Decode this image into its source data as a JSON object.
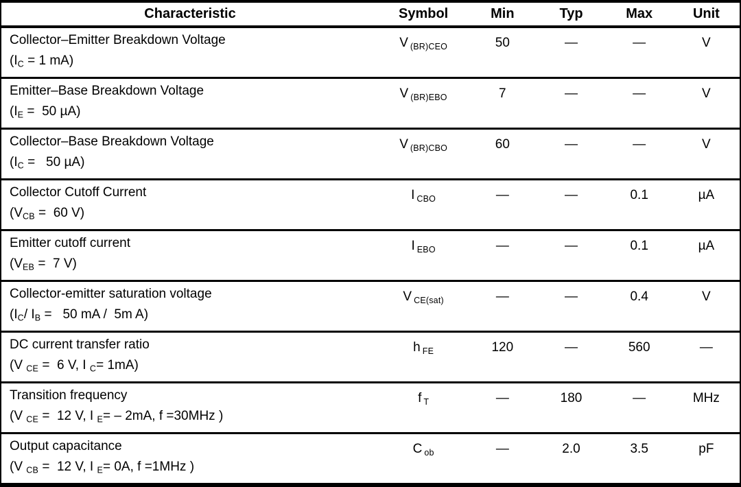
{
  "table": {
    "headers": [
      "Characteristic",
      "Symbol",
      "Min",
      "Typ",
      "Max",
      "Unit"
    ],
    "empty_marker": "—",
    "rows": [
      {
        "name": "Collector–Emitter Breakdown Voltage",
        "condition": [
          {
            "t": "(I"
          },
          {
            "s": "C"
          },
          {
            "t": " = 1 mA)"
          }
        ],
        "symbol": {
          "base": "V",
          "sub": "(BR)CEO"
        },
        "min": "50",
        "typ": "—",
        "max": "—",
        "unit": "V"
      },
      {
        "name": "Emitter–Base Breakdown Voltage",
        "condition": [
          {
            "t": "(I"
          },
          {
            "s": "E"
          },
          {
            "t": " =  50 µA)"
          }
        ],
        "symbol": {
          "base": "V",
          "sub": "(BR)EBO"
        },
        "min": "7",
        "typ": "—",
        "max": "—",
        "unit": "V"
      },
      {
        "name": "Collector–Base Breakdown Voltage",
        "condition": [
          {
            "t": "(I"
          },
          {
            "s": "C"
          },
          {
            "t": " =   50 µA)"
          }
        ],
        "symbol": {
          "base": "V",
          "sub": "(BR)CBO"
        },
        "min": "60",
        "typ": "—",
        "max": "—",
        "unit": "V"
      },
      {
        "name": "Collector Cutoff Current",
        "condition": [
          {
            "t": "(V"
          },
          {
            "s": "CB"
          },
          {
            "t": " =  60 V)"
          }
        ],
        "symbol": {
          "base": "I",
          "sub": "CBO"
        },
        "min": "—",
        "typ": "—",
        "max": "0.1",
        "unit": "µA"
      },
      {
        "name": "Emitter cutoff current",
        "condition": [
          {
            "t": "(V"
          },
          {
            "s": "EB"
          },
          {
            "t": " =  7 V)"
          }
        ],
        "symbol": {
          "base": "I",
          "sub": "EBO"
        },
        "min": "—",
        "typ": "—",
        "max": "0.1",
        "unit": "µA"
      },
      {
        "name": "Collector-emitter saturation voltage",
        "condition": [
          {
            "t": "(I"
          },
          {
            "s": "C"
          },
          {
            "t": "/ I"
          },
          {
            "s": "B"
          },
          {
            "t": " =   50 mA /  5m A)"
          }
        ],
        "symbol": {
          "base": "V",
          "sub": "CE(sat)"
        },
        "min": "—",
        "typ": "—",
        "max": "0.4",
        "unit": "V"
      },
      {
        "name": "DC current transfer ratio",
        "condition": [
          {
            "t": "(V "
          },
          {
            "s": "CE"
          },
          {
            "t": " =  6 V, I "
          },
          {
            "s": "C"
          },
          {
            "t": "= 1mA)"
          }
        ],
        "symbol": {
          "base": "h",
          "sub": "FE"
        },
        "min": "120",
        "typ": "—",
        "max": "560",
        "unit": "—"
      },
      {
        "name": "Transition frequency",
        "condition": [
          {
            "t": "(V "
          },
          {
            "s": "CE"
          },
          {
            "t": " =  12 V, I "
          },
          {
            "s": "E"
          },
          {
            "t": "= – 2mA, f =30MHz )"
          }
        ],
        "symbol": {
          "base": "f",
          "sub": "T"
        },
        "min": "—",
        "typ": "180",
        "max": "—",
        "unit": "MHz"
      },
      {
        "name": "Output capacitance",
        "condition": [
          {
            "t": "(V "
          },
          {
            "s": "CB"
          },
          {
            "t": " =  12 V, I "
          },
          {
            "s": "E"
          },
          {
            "t": "= 0A, f =1MHz )"
          }
        ],
        "symbol": {
          "base": "C",
          "sub": "ob"
        },
        "min": "—",
        "typ": "2.0",
        "max": "3.5",
        "unit": "pF"
      }
    ]
  }
}
